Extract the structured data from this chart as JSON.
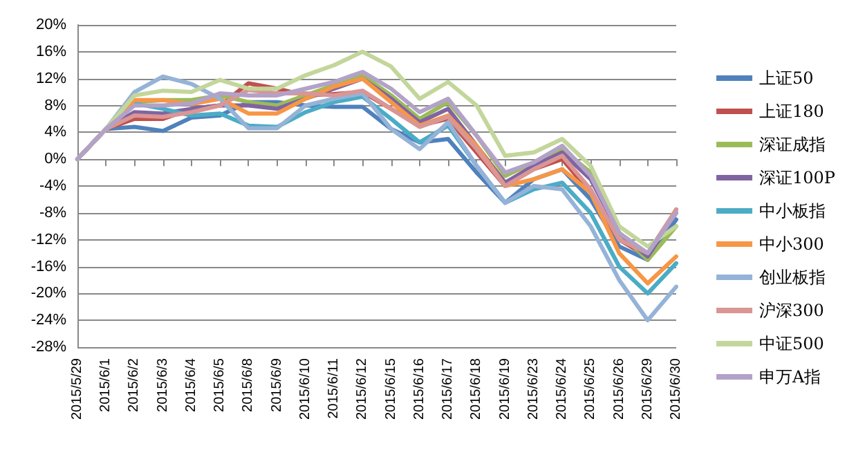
{
  "chart_data": {
    "type": "line",
    "categories": [
      "2015/5/29",
      "2015/6/1",
      "2015/6/2",
      "2015/6/3",
      "2015/6/4",
      "2015/6/5",
      "2015/6/8",
      "2015/6/9",
      "2015/6/10",
      "2015/6/11",
      "2015/6/12",
      "2015/6/15",
      "2015/6/16",
      "2015/6/17",
      "2015/6/18",
      "2015/6/19",
      "2015/6/23",
      "2015/6/24",
      "2015/6/25",
      "2015/6/26",
      "2015/6/29",
      "2015/6/30"
    ],
    "series": [
      {
        "name": "上证50",
        "color": "#4f81bd",
        "values": [
          0,
          4.5,
          4.8,
          4.2,
          6.2,
          6.5,
          8.5,
          8.5,
          8,
          7.8,
          7.8,
          4.5,
          2.5,
          3,
          -2,
          -6.5,
          -3,
          -1.5,
          -6,
          -13,
          -15,
          -9
        ]
      },
      {
        "name": "上证180",
        "color": "#c0504d",
        "values": [
          0,
          4.5,
          6,
          6,
          7.5,
          8,
          11.3,
          10.5,
          9.5,
          9.7,
          10,
          7.5,
          5,
          6,
          1,
          -4,
          -1.5,
          0,
          -5,
          -12,
          -14.5,
          -7.5
        ]
      },
      {
        "name": "深证成指",
        "color": "#9bbb59",
        "values": [
          0,
          4.5,
          8.5,
          8.8,
          8.8,
          9.5,
          8.5,
          8,
          9.5,
          11,
          12.5,
          9.5,
          6,
          8.5,
          3.5,
          -2.5,
          -0.5,
          1.5,
          -2,
          -11,
          -15,
          -10
        ]
      },
      {
        "name": "深证100P",
        "color": "#8064a2",
        "values": [
          0,
          4.5,
          7,
          6.8,
          7.5,
          8,
          8,
          7.5,
          9,
          10.5,
          12,
          9,
          5.5,
          7.5,
          2,
          -3.5,
          -1,
          1,
          -3,
          -11,
          -14.5,
          -8
        ]
      },
      {
        "name": "中小板指",
        "color": "#4bacc6",
        "values": [
          0,
          4.5,
          8.3,
          7.5,
          6.5,
          6.8,
          5,
          4.8,
          7,
          8.5,
          9.3,
          6,
          2.5,
          5,
          -1,
          -6.5,
          -4.5,
          -3.5,
          -8,
          -16,
          -20,
          -15.5
        ]
      },
      {
        "name": "中小300",
        "color": "#f79646",
        "values": [
          0,
          4.5,
          8.8,
          8.8,
          8.2,
          9,
          6.8,
          6.8,
          9,
          10.8,
          12,
          8.5,
          5,
          6.5,
          2,
          -4,
          -3,
          -1.5,
          -5,
          -14,
          -18.5,
          -14.5
        ]
      },
      {
        "name": "创业板指",
        "color": "#95b3d7",
        "values": [
          0,
          4.5,
          10,
          12.3,
          11.2,
          9,
          4.6,
          4.6,
          8,
          9,
          9.8,
          4.5,
          1.5,
          5.5,
          -1,
          -6.5,
          -4,
          -4.5,
          -10,
          -18,
          -24,
          -19
        ]
      },
      {
        "name": "沪深300",
        "color": "#d99694",
        "values": [
          0,
          4.5,
          6.5,
          6.3,
          7,
          8,
          10.3,
          9.8,
          9.8,
          9.5,
          10.2,
          7.5,
          4.8,
          6.3,
          1.5,
          -4,
          -1.5,
          0.5,
          -4.5,
          -12,
          -14,
          -7.5
        ]
      },
      {
        "name": "中证500",
        "color": "#c3d69b",
        "values": [
          0,
          4.5,
          9.5,
          10.2,
          10,
          11.8,
          10.5,
          10.5,
          12.5,
          14,
          16,
          13.8,
          9,
          11.5,
          8,
          0.5,
          1,
          3,
          -1,
          -10,
          -13,
          -10
        ]
      },
      {
        "name": "申万A指",
        "color": "#b3a2c7",
        "values": [
          0,
          4.5,
          8,
          8,
          8.3,
          9.8,
          9.5,
          9.5,
          10.5,
          11.5,
          13,
          10.5,
          7,
          9,
          3.5,
          -2,
          -0.5,
          2,
          -2.5,
          -11,
          -14,
          -8
        ]
      }
    ],
    "ylim": [
      -28,
      20
    ],
    "yticks": [
      {
        "value": -28,
        "label": "-28%"
      },
      {
        "value": -24,
        "label": "-24%"
      },
      {
        "value": -20,
        "label": "-20%"
      },
      {
        "value": -16,
        "label": "-16%"
      },
      {
        "value": -12,
        "label": "-12%"
      },
      {
        "value": -8,
        "label": "-8%"
      },
      {
        "value": -4,
        "label": "-4%"
      },
      {
        "value": 0,
        "label": "0%"
      },
      {
        "value": 4,
        "label": "4%"
      },
      {
        "value": 8,
        "label": "8%"
      },
      {
        "value": 12,
        "label": "12%"
      },
      {
        "value": 16,
        "label": "16%"
      },
      {
        "value": 20,
        "label": "20%"
      }
    ],
    "grid": "y",
    "legend": "right",
    "marker": "none",
    "line_style": "solid"
  }
}
